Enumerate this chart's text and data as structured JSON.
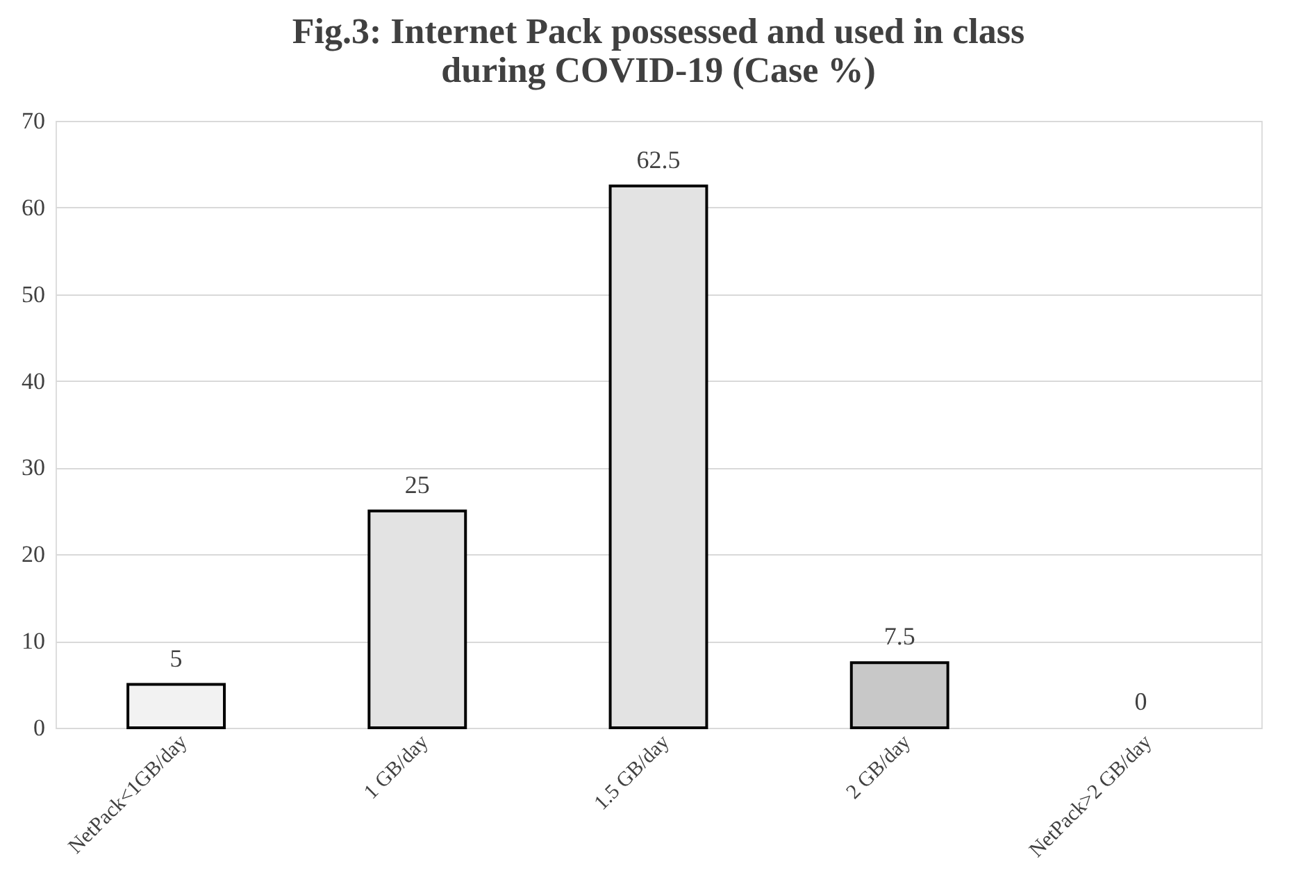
{
  "chart_data": {
    "type": "bar",
    "title": [
      "Fig.3: Internet Pack possessed and used in class",
      "during COVID-19 (Case %)"
    ],
    "categories": [
      "NetPack<1GB/day",
      "1 GB/day",
      "1.5 GB/day",
      "2 GB/day",
      "NetPack>2 GB/day"
    ],
    "values": [
      5,
      25,
      62.5,
      7.5,
      0
    ],
    "colors": [
      "#f2f2f2",
      "#e3e3e3",
      "#e3e3e3",
      "#c8c8c8",
      "#e3e3e3"
    ],
    "ylim": [
      0,
      70
    ],
    "yticks": [
      0,
      10,
      20,
      30,
      40,
      50,
      60,
      70
    ],
    "grid": "y",
    "data_labels": true
  }
}
